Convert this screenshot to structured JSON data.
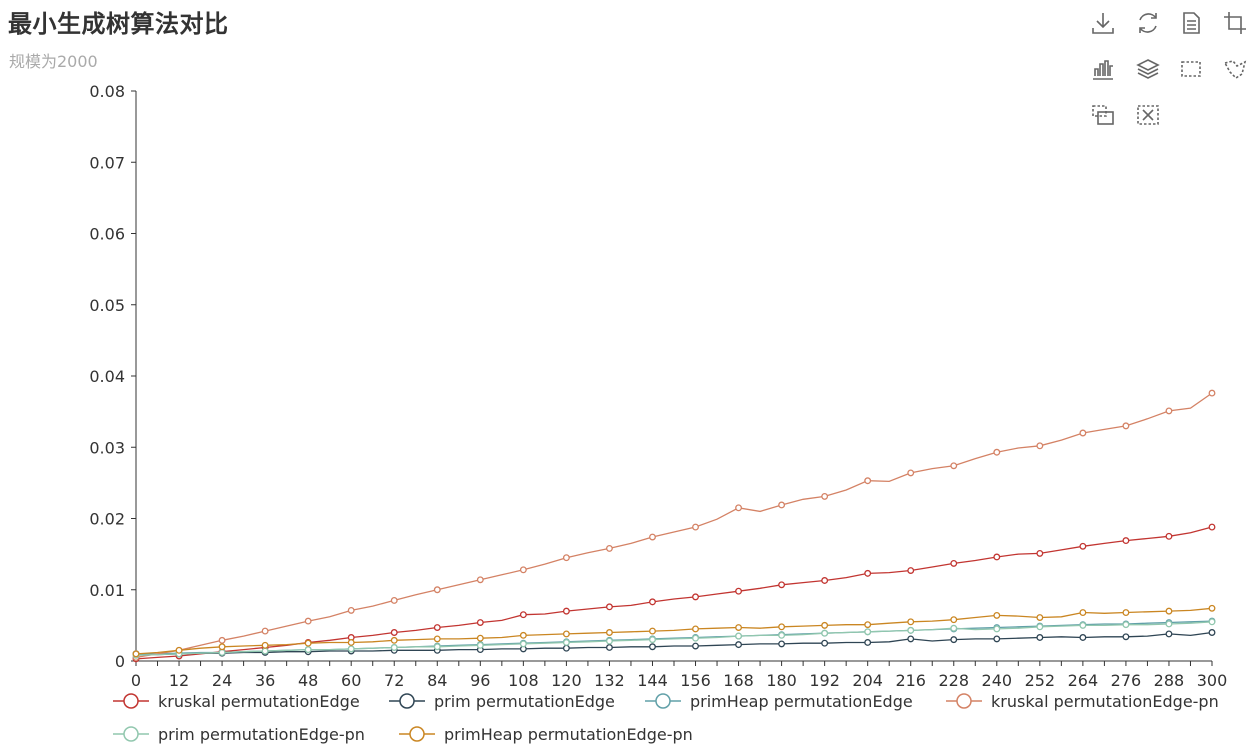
{
  "title": "最小生成树算法对比",
  "subtitle": "规模为2000",
  "toolbox": [
    "download-icon",
    "restore-icon",
    "data-view-icon",
    "crop-icon",
    "bar-chart-icon",
    "stack-icon",
    "brush-rect-icon",
    "brush-polygon-icon",
    "brush-keep-icon",
    "brush-clear-icon"
  ],
  "chart_data": {
    "type": "line",
    "title": "最小生成树算法对比",
    "subtitle": "规模为2000",
    "x": [
      0,
      6,
      12,
      18,
      24,
      30,
      36,
      42,
      48,
      54,
      60,
      66,
      72,
      78,
      84,
      90,
      96,
      102,
      108,
      114,
      120,
      126,
      132,
      138,
      144,
      150,
      156,
      162,
      168,
      174,
      180,
      186,
      192,
      198,
      204,
      210,
      216,
      222,
      228,
      234,
      240,
      246,
      252,
      258,
      264,
      270,
      276,
      282,
      288,
      294,
      300
    ],
    "x_ticks": [
      0,
      12,
      24,
      36,
      48,
      60,
      72,
      84,
      96,
      108,
      120,
      132,
      144,
      156,
      168,
      180,
      192,
      204,
      216,
      228,
      240,
      252,
      264,
      276,
      288,
      300
    ],
    "y_ticks": [
      "0",
      "0.01",
      "0.02",
      "0.03",
      "0.04",
      "0.05",
      "0.06",
      "0.07",
      "0.08"
    ],
    "ylim": [
      0,
      0.08
    ],
    "xlim": [
      0,
      300
    ],
    "legend_position": "bottom",
    "series": [
      {
        "name": "kruskal permutationEdge",
        "color": "#c23531",
        "values": [
          0.0003,
          0.0005,
          0.0007,
          0.001,
          0.0013,
          0.0016,
          0.0019,
          0.0022,
          0.0026,
          0.0029,
          0.0033,
          0.0036,
          0.004,
          0.0043,
          0.0047,
          0.005,
          0.0054,
          0.0057,
          0.0065,
          0.0066,
          0.007,
          0.0073,
          0.0076,
          0.0078,
          0.0083,
          0.0087,
          0.009,
          0.0094,
          0.0098,
          0.0102,
          0.0107,
          0.011,
          0.0113,
          0.0117,
          0.0123,
          0.0124,
          0.0127,
          0.0132,
          0.0137,
          0.0141,
          0.0146,
          0.015,
          0.0151,
          0.0156,
          0.0161,
          0.0165,
          0.0169,
          0.0172,
          0.0175,
          0.018,
          0.0188
        ]
      },
      {
        "name": "prim permutationEdge",
        "color": "#2f4554",
        "values": [
          0.001,
          0.0009,
          0.001,
          0.0011,
          0.0011,
          0.0012,
          0.0012,
          0.0013,
          0.0013,
          0.0014,
          0.0014,
          0.0014,
          0.0015,
          0.0015,
          0.0015,
          0.0016,
          0.0016,
          0.0017,
          0.0017,
          0.0018,
          0.0018,
          0.0019,
          0.0019,
          0.002,
          0.002,
          0.0021,
          0.0021,
          0.0022,
          0.0023,
          0.0024,
          0.0024,
          0.0025,
          0.0025,
          0.0026,
          0.0026,
          0.0027,
          0.0031,
          0.0028,
          0.003,
          0.0031,
          0.0031,
          0.0032,
          0.0033,
          0.0034,
          0.0033,
          0.0034,
          0.0034,
          0.0035,
          0.0038,
          0.0036,
          0.004
        ]
      },
      {
        "name": "primHeap permutationEdge",
        "color": "#61a0a8",
        "values": [
          0.001,
          0.001,
          0.0011,
          0.0012,
          0.0012,
          0.0013,
          0.0014,
          0.0015,
          0.0016,
          0.0016,
          0.0017,
          0.0018,
          0.0019,
          0.002,
          0.0021,
          0.0022,
          0.0023,
          0.0024,
          0.0025,
          0.0026,
          0.0027,
          0.0028,
          0.0029,
          0.003,
          0.0031,
          0.0032,
          0.0033,
          0.0034,
          0.0035,
          0.0036,
          0.0037,
          0.0038,
          0.0039,
          0.004,
          0.0041,
          0.0042,
          0.0043,
          0.0044,
          0.0045,
          0.0046,
          0.0047,
          0.0048,
          0.0049,
          0.005,
          0.0051,
          0.0052,
          0.0052,
          0.0053,
          0.0054,
          0.0055,
          0.0056
        ]
      },
      {
        "name": "kruskal permutationEdge-pn",
        "color": "#d48265",
        "values": [
          0.0005,
          0.001,
          0.0015,
          0.0022,
          0.0029,
          0.0035,
          0.0042,
          0.0049,
          0.0056,
          0.0062,
          0.0071,
          0.0077,
          0.0085,
          0.0093,
          0.01,
          0.0107,
          0.0114,
          0.0121,
          0.0128,
          0.0136,
          0.0145,
          0.0152,
          0.0158,
          0.0165,
          0.0174,
          0.0181,
          0.0188,
          0.0199,
          0.0215,
          0.021,
          0.0219,
          0.0227,
          0.0231,
          0.024,
          0.0253,
          0.0252,
          0.0264,
          0.027,
          0.0274,
          0.0284,
          0.0293,
          0.0299,
          0.0302,
          0.031,
          0.032,
          0.0325,
          0.033,
          0.034,
          0.0351,
          0.0355,
          0.0376
        ]
      },
      {
        "name": "prim permutationEdge-pn",
        "color": "#91c7ae",
        "values": [
          0.0008,
          0.0009,
          0.001,
          0.0011,
          0.0012,
          0.0013,
          0.0014,
          0.0015,
          0.0016,
          0.0016,
          0.0017,
          0.0018,
          0.0019,
          0.002,
          0.002,
          0.0021,
          0.0022,
          0.0023,
          0.0024,
          0.0025,
          0.0026,
          0.0027,
          0.0028,
          0.0029,
          0.003,
          0.0031,
          0.0032,
          0.0033,
          0.0035,
          0.0036,
          0.0036,
          0.0037,
          0.0039,
          0.004,
          0.0041,
          0.0042,
          0.0043,
          0.0044,
          0.0046,
          0.0044,
          0.0045,
          0.0046,
          0.0048,
          0.0049,
          0.005,
          0.005,
          0.0051,
          0.0051,
          0.0052,
          0.0053,
          0.0055
        ]
      },
      {
        "name": "primHeap permutationEdge-pn",
        "color": "#ca8622",
        "values": [
          0.001,
          0.0012,
          0.0015,
          0.0018,
          0.002,
          0.0021,
          0.0022,
          0.0023,
          0.0025,
          0.0026,
          0.0026,
          0.0027,
          0.0029,
          0.003,
          0.0031,
          0.0031,
          0.0032,
          0.0033,
          0.0036,
          0.0037,
          0.0038,
          0.0039,
          0.004,
          0.0041,
          0.0042,
          0.0043,
          0.0045,
          0.0046,
          0.0047,
          0.0046,
          0.0048,
          0.0049,
          0.005,
          0.0051,
          0.0051,
          0.0053,
          0.0055,
          0.0056,
          0.0058,
          0.0061,
          0.0064,
          0.0063,
          0.0061,
          0.0062,
          0.0068,
          0.0067,
          0.0068,
          0.0069,
          0.007,
          0.0071,
          0.0074
        ]
      }
    ]
  }
}
